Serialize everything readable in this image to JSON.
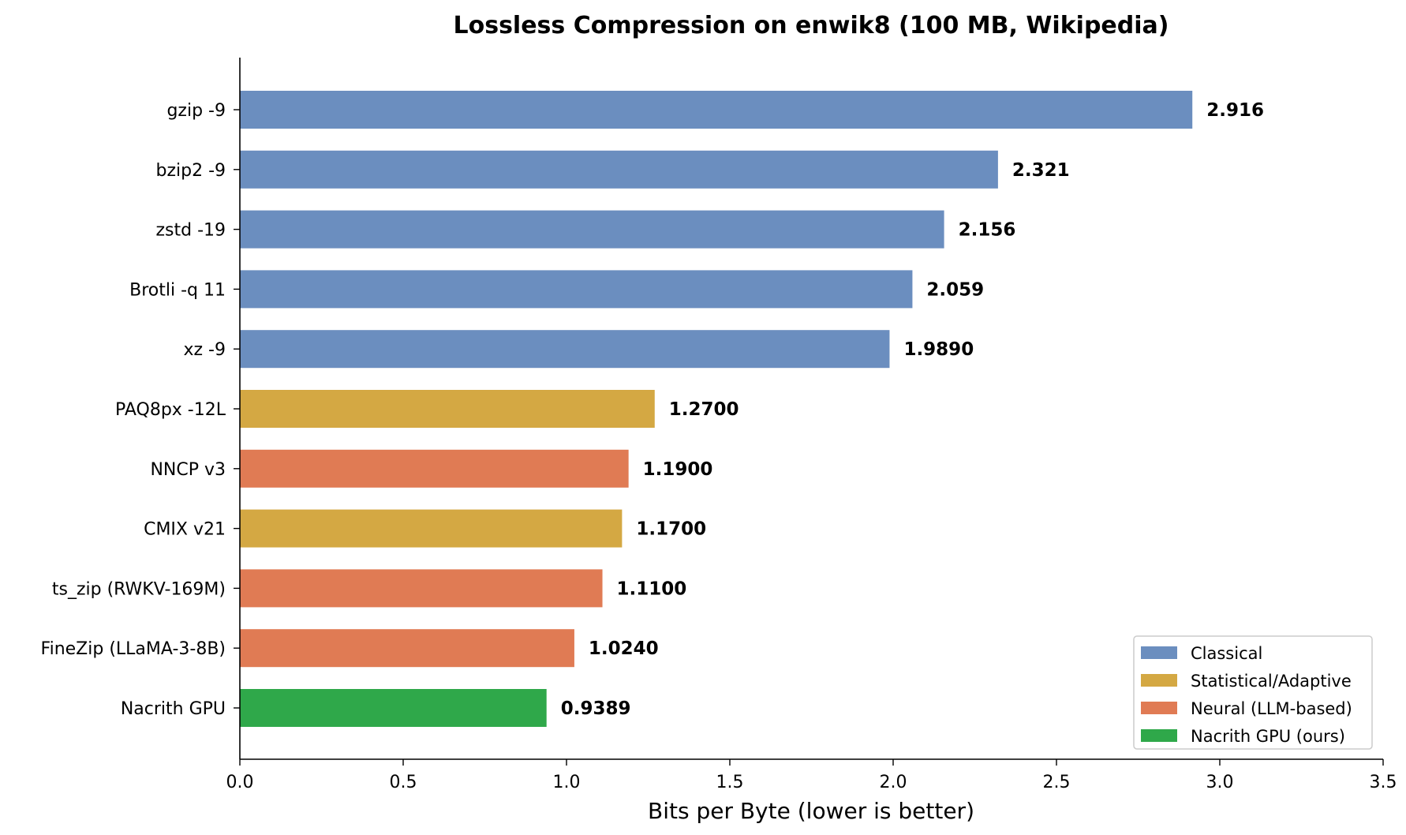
{
  "chart_data": {
    "type": "bar",
    "orientation": "horizontal",
    "title": "Lossless Compression on enwik8 (100 MB, Wikipedia)",
    "xlabel": "Bits per Byte (lower is better)",
    "ylabel": "",
    "xlim": [
      0,
      3.5
    ],
    "xticks": [
      "0.0",
      "0.5",
      "1.0",
      "1.5",
      "2.0",
      "2.5",
      "3.0",
      "3.5"
    ],
    "grid": false,
    "legend_position": "bottom-right",
    "categories": [
      "gzip -9",
      "bzip2 -9",
      "zstd -19",
      "Brotli -q 11",
      "xz -9",
      "PAQ8px -12L",
      "NNCP v3",
      "CMIX v21",
      "ts_zip (RWKV-169M)",
      "FineZip (LLaMA-3-8B)",
      "Nacrith GPU"
    ],
    "values": [
      2.916,
      2.321,
      2.156,
      2.059,
      1.989,
      1.27,
      1.19,
      1.17,
      1.11,
      1.024,
      0.9389
    ],
    "value_labels": [
      "2.916",
      "2.321",
      "2.156",
      "2.059",
      "1.9890",
      "1.2700",
      "1.1900",
      "1.1700",
      "1.1100",
      "1.0240",
      "0.9389"
    ],
    "groups": [
      "Classical",
      "Classical",
      "Classical",
      "Classical",
      "Classical",
      "Statistical/Adaptive",
      "Neural (LLM-based)",
      "Statistical/Adaptive",
      "Neural (LLM-based)",
      "Neural (LLM-based)",
      "Nacrith GPU (ours)"
    ],
    "legend": [
      {
        "name": "Classical",
        "color": "#6b8ebf"
      },
      {
        "name": "Statistical/Adaptive",
        "color": "#d4a843"
      },
      {
        "name": "Neural (LLM-based)",
        "color": "#e07b54"
      },
      {
        "name": "Nacrith GPU (ours)",
        "color": "#2fa84a"
      }
    ]
  }
}
